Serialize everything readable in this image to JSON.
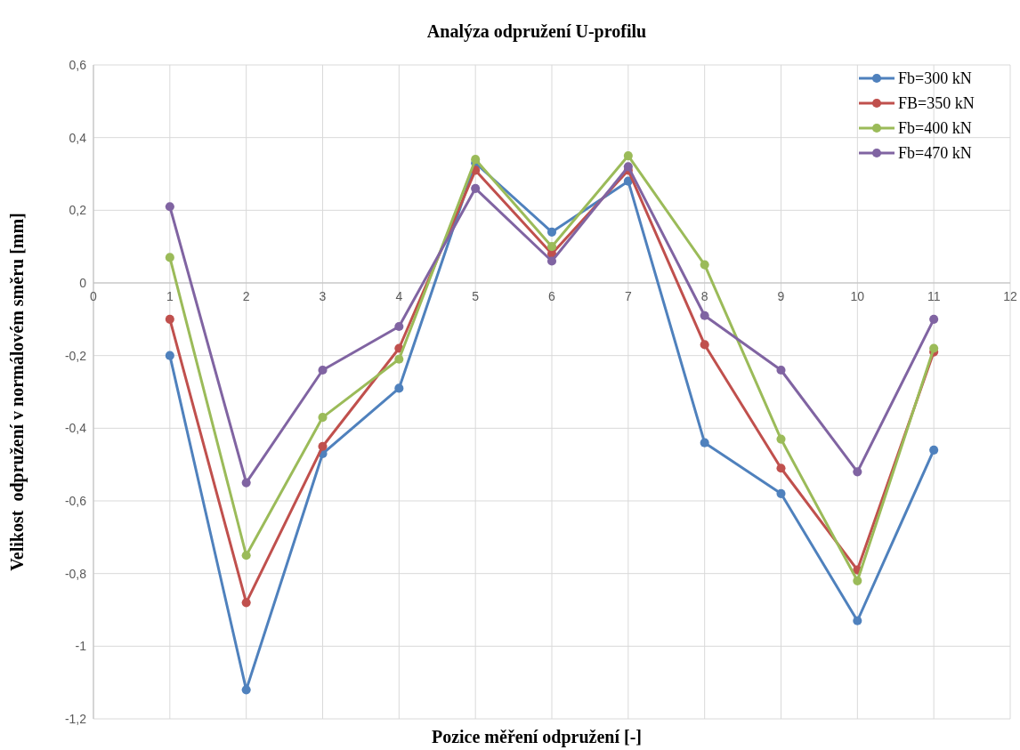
{
  "chart_data": {
    "type": "line",
    "title": "Analýza odpružení U-profilu",
    "xlabel": "Pozice měření odpružení [-]",
    "ylabel": "Velikost  odpružení v normálovém směru [mm]",
    "x": [
      1,
      2,
      3,
      4,
      5,
      6,
      7,
      8,
      9,
      10,
      11
    ],
    "series": [
      {
        "name": "Fb=300 kN",
        "color": "#4f81bd",
        "values": [
          -0.2,
          -1.12,
          -0.47,
          -0.29,
          0.33,
          0.14,
          0.28,
          -0.44,
          -0.58,
          -0.93,
          -0.46
        ]
      },
      {
        "name": "FB=350 kN",
        "color": "#c0504d",
        "values": [
          -0.1,
          -0.88,
          -0.45,
          -0.18,
          0.31,
          0.08,
          0.31,
          -0.17,
          -0.51,
          -0.79,
          -0.19
        ]
      },
      {
        "name": "Fb=400 kN",
        "color": "#9bbb59",
        "values": [
          0.07,
          -0.75,
          -0.37,
          -0.21,
          0.34,
          0.1,
          0.35,
          0.05,
          -0.43,
          -0.82,
          -0.18
        ]
      },
      {
        "name": "Fb=470 kN",
        "color": "#8064a2",
        "values": [
          0.21,
          -0.55,
          -0.24,
          -0.12,
          0.26,
          0.06,
          0.32,
          -0.09,
          -0.24,
          -0.52,
          -0.1
        ]
      }
    ],
    "xlim": [
      0,
      12
    ],
    "xticks": [
      0,
      1,
      2,
      3,
      4,
      5,
      6,
      7,
      8,
      9,
      10,
      11,
      12
    ],
    "ylim": [
      -1.2,
      0.6
    ],
    "yticks": [
      {
        "value": -1.2,
        "label": "-1,2"
      },
      -1,
      {
        "value": -0.8,
        "label": "-0,8"
      },
      {
        "value": -0.6,
        "label": "-0,6"
      },
      {
        "value": -0.4,
        "label": "-0,4"
      },
      {
        "value": -0.2,
        "label": "-0,2"
      },
      0,
      {
        "value": 0.2,
        "label": "0,2"
      },
      {
        "value": 0.4,
        "label": "0,4"
      },
      {
        "value": 0.6,
        "label": "0,6"
      }
    ],
    "grid": true,
    "legend": "top right",
    "marker": "circle",
    "line_style": "solid"
  }
}
